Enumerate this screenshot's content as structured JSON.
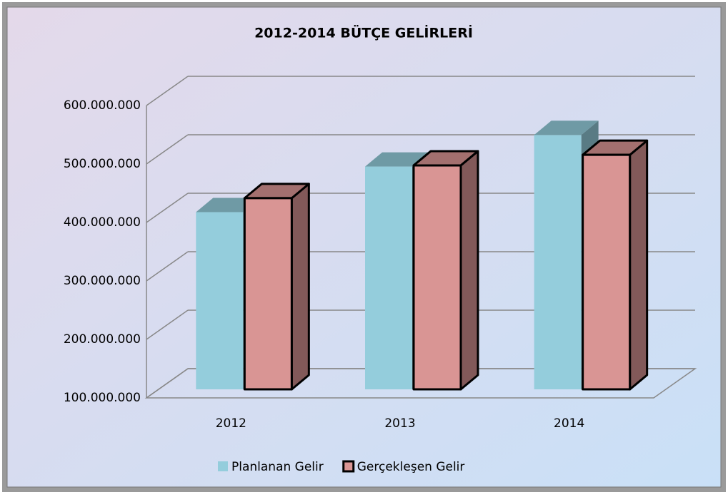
{
  "chart_data": {
    "type": "bar3d",
    "title": "2012-2014 BÜTÇE GELİRLERİ",
    "categories": [
      "2012",
      "2013",
      "2014"
    ],
    "series": [
      {
        "name": "Planlanan Gelir",
        "color": "#94cddc",
        "values": [
          403000000,
          481000000,
          535000000
        ]
      },
      {
        "name": "Gerçekleşen Gelir",
        "color": "#d99594",
        "values": [
          427000000,
          483000000,
          501000000
        ]
      }
    ],
    "ylim": [
      100000000,
      600000000
    ],
    "yticks": [
      {
        "value": 100000000,
        "label": "100.000.000"
      },
      {
        "value": 200000000,
        "label": "200.000.000"
      },
      {
        "value": 300000000,
        "label": "300.000.000"
      },
      {
        "value": 400000000,
        "label": "400.000.000"
      },
      {
        "value": 500000000,
        "label": "500.000.000"
      },
      {
        "value": 600000000,
        "label": "600.000.000"
      }
    ],
    "grid": true
  }
}
